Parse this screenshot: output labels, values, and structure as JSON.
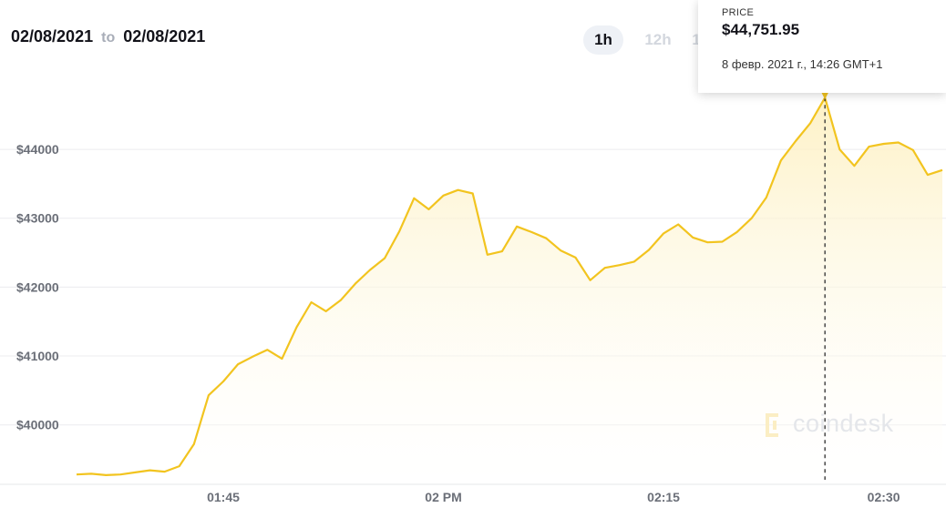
{
  "header": {
    "from": "02/08/2021",
    "to_word": "to",
    "to": "02/08/2021"
  },
  "ranges": {
    "active": "1h",
    "second": "12h",
    "third": "1"
  },
  "tooltip": {
    "label": "PRICE",
    "price": "$44,751.95",
    "date": "8 февр. 2021 г., 14:26 GMT+1"
  },
  "watermark": "coindesk",
  "colors": {
    "line": "#f2c41f",
    "fill_top": "#fdf2c8",
    "grid": "#ececef",
    "axis_text": "#6b6f78"
  },
  "chart_data": {
    "type": "area",
    "title": "",
    "xlabel": "",
    "ylabel": "",
    "x_ticks": [
      "01:45",
      "02 PM",
      "02:15",
      "02:30"
    ],
    "y_ticks": [
      "$40000",
      "$41000",
      "$42000",
      "$43000",
      "$44000"
    ],
    "ylim": [
      39150,
      44900
    ],
    "grid": "horizontal",
    "tooltip_point": {
      "time": "14:26",
      "value": 44751.95
    },
    "series": [
      {
        "times": [
          "13:35",
          "13:36",
          "13:37",
          "13:38",
          "13:39",
          "13:40",
          "13:41",
          "13:42",
          "13:43",
          "13:44",
          "13:45",
          "13:46",
          "13:47",
          "13:48",
          "13:49",
          "13:50",
          "13:51",
          "13:52",
          "13:53",
          "13:54",
          "13:55",
          "13:56",
          "13:57",
          "13:58",
          "13:59",
          "14:00",
          "14:01",
          "14:02",
          "14:03",
          "14:04",
          "14:05",
          "14:06",
          "14:07",
          "14:08",
          "14:09",
          "14:10",
          "14:11",
          "14:12",
          "14:13",
          "14:14",
          "14:15",
          "14:16",
          "14:17",
          "14:18",
          "14:19",
          "14:20",
          "14:21",
          "14:22",
          "14:23",
          "14:24",
          "14:25",
          "14:26",
          "14:27",
          "14:28",
          "14:29",
          "14:30",
          "14:31",
          "14:32",
          "14:33",
          "14:34"
        ],
        "values": [
          39280,
          39290,
          39270,
          39280,
          39310,
          39340,
          39320,
          39400,
          39720,
          40430,
          40630,
          40880,
          40990,
          41090,
          40960,
          41420,
          41780,
          41650,
          41810,
          42050,
          42250,
          42420,
          42810,
          43290,
          43130,
          43330,
          43410,
          43360,
          42470,
          42520,
          42880,
          42800,
          42710,
          42530,
          42430,
          42100,
          42280,
          42320,
          42370,
          42540,
          42780,
          42910,
          42720,
          42650,
          42660,
          42800,
          43000,
          43300,
          43840,
          44120,
          44380,
          44750,
          44000,
          43760,
          44040,
          44080,
          44100,
          43990,
          43630,
          43700
        ]
      }
    ]
  }
}
